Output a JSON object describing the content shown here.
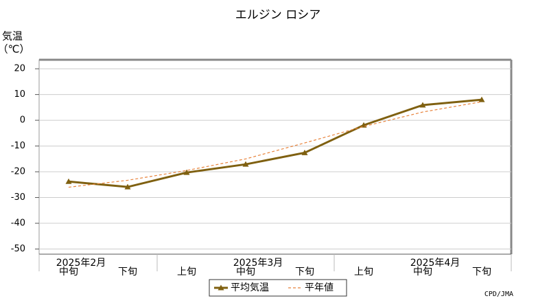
{
  "chart_data": {
    "type": "line",
    "title": "エルジン ロシア",
    "y_label": [
      "気温",
      "（℃）"
    ],
    "categories": [
      "中旬",
      "下旬",
      "上旬",
      "中旬",
      "下旬",
      "上旬",
      "中旬",
      "下旬"
    ],
    "month_labels": [
      "2025年2月",
      "2025年3月",
      "2025年4月"
    ],
    "series": [
      {
        "name": "平均気温",
        "color": "#7f6010",
        "values": [
          -23.8,
          -25.9,
          -20.3,
          -17.1,
          -12.6,
          -1.9,
          5.9,
          8.0
        ]
      },
      {
        "name": "平年値",
        "color": "#e8823a",
        "values": [
          -26.0,
          -23.3,
          -19.5,
          -15.0,
          -8.8,
          -2.4,
          3.2,
          7.2
        ]
      }
    ],
    "ylim": [
      -52,
      23.5
    ],
    "yticks": [
      20,
      10,
      0,
      -10,
      -20,
      -30,
      -40,
      -50
    ],
    "grid": true,
    "legend": "bottom",
    "credit": "CPD/JMA"
  }
}
